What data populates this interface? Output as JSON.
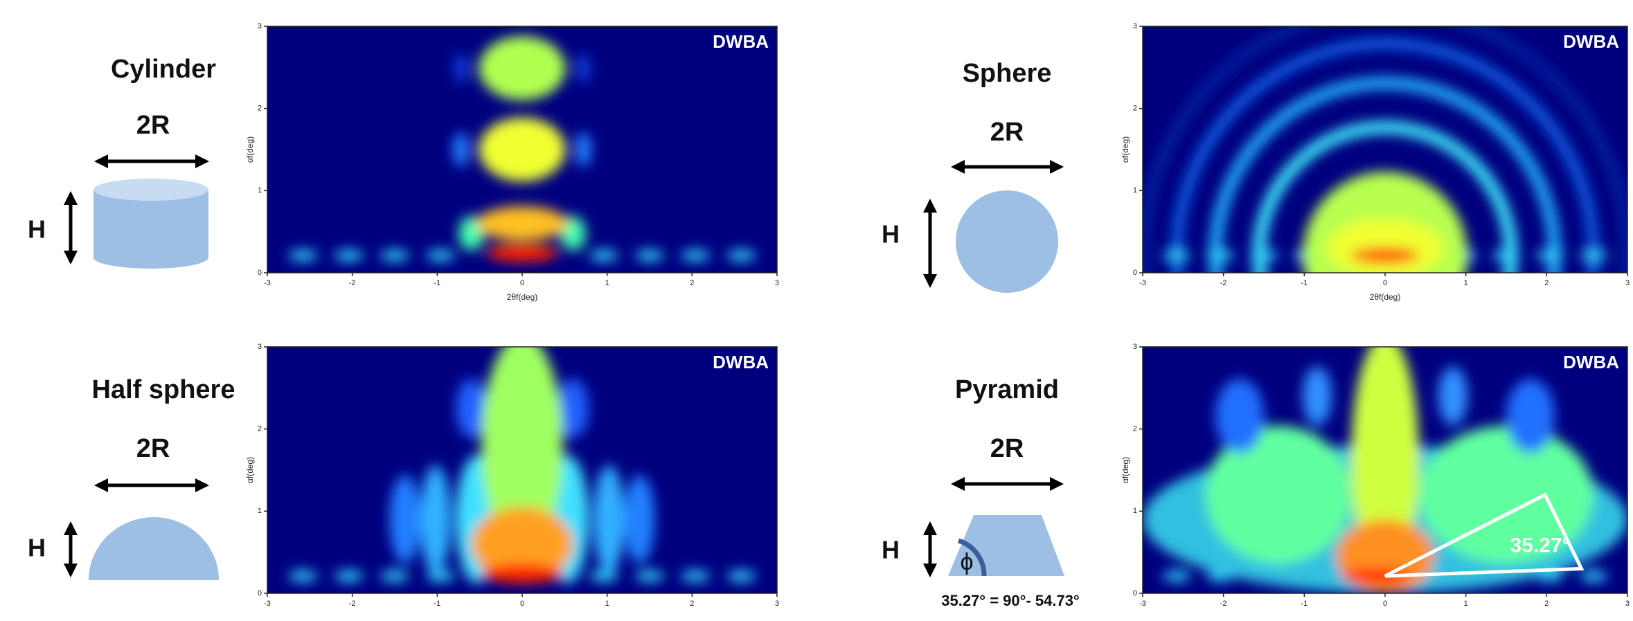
{
  "shapes": [
    {
      "title": "Cylinder",
      "width_label": "2R",
      "height_label": "H"
    },
    {
      "title": "Sphere",
      "width_label": "2R",
      "height_label": "H"
    },
    {
      "title": "Half sphere",
      "width_label": "2R",
      "height_label": "H"
    },
    {
      "title": "Pyramid",
      "width_label": "2R",
      "height_label": "H",
      "angle_symbol": "ϕ",
      "equation": "35.27° = 90°- 54.73°"
    }
  ],
  "chart_data": [
    {
      "type": "heatmap",
      "label": "DWBA",
      "xlabel": "2θf(deg)",
      "ylabel": "αf(deg)",
      "xlim": [
        -3,
        3
      ],
      "ylim": [
        0,
        3
      ],
      "xticks": [
        -3,
        -2,
        -1,
        0,
        1,
        2,
        3
      ],
      "yticks": [
        0,
        1,
        2,
        3
      ]
    },
    {
      "type": "heatmap",
      "label": "DWBA",
      "xlabel": "2θf(deg)",
      "ylabel": "αf(deg)",
      "xlim": [
        -3,
        3
      ],
      "ylim": [
        0,
        3
      ],
      "xticks": [
        -3,
        -2,
        -1,
        0,
        1,
        2,
        3
      ],
      "yticks": [
        0,
        1,
        2,
        3
      ]
    },
    {
      "type": "heatmap",
      "label": "DWBA",
      "ylabel": "αf(deg)",
      "xlim": [
        -3,
        3
      ],
      "ylim": [
        0,
        3
      ],
      "xticks": [
        -3,
        -2,
        -1,
        0,
        1,
        2,
        3
      ],
      "yticks": [
        0,
        1,
        2,
        3
      ]
    },
    {
      "type": "heatmap",
      "label": "DWBA",
      "ylabel": "αf(deg)",
      "annotation": "35.27°",
      "xlim": [
        -3,
        3
      ],
      "ylim": [
        0,
        3
      ],
      "xticks": [
        -3,
        -2,
        -1,
        0,
        1,
        2,
        3
      ],
      "yticks": [
        0,
        1,
        2,
        3
      ]
    }
  ]
}
